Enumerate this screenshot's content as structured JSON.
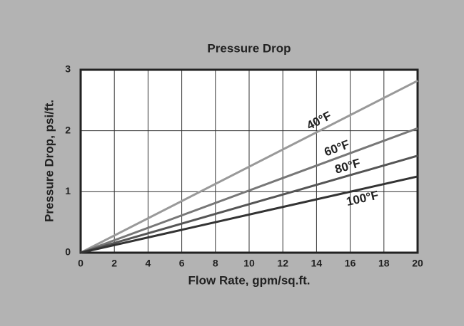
{
  "chart_data": {
    "type": "line",
    "title": "Pressure Drop",
    "x_label": "Flow Rate, gpm/sq.ft.",
    "y_label": "Pressure Drop, psi/ft.",
    "x": [
      0,
      20
    ],
    "series": [
      {
        "name": "40°F",
        "color": "#999999",
        "values": [
          0,
          2.82
        ]
      },
      {
        "name": "60°F",
        "color": "#777777",
        "values": [
          0,
          2.04
        ]
      },
      {
        "name": "80°F",
        "color": "#555555",
        "values": [
          0,
          1.59
        ]
      },
      {
        "name": "100°F",
        "color": "#333333",
        "values": [
          0,
          1.25
        ]
      }
    ],
    "xlim": [
      0,
      20
    ],
    "ylim": [
      0,
      3
    ],
    "xticks": [
      0,
      2,
      4,
      6,
      8,
      10,
      12,
      14,
      16,
      18,
      20
    ],
    "yticks": [
      0,
      1,
      2,
      3
    ],
    "grid": true
  }
}
